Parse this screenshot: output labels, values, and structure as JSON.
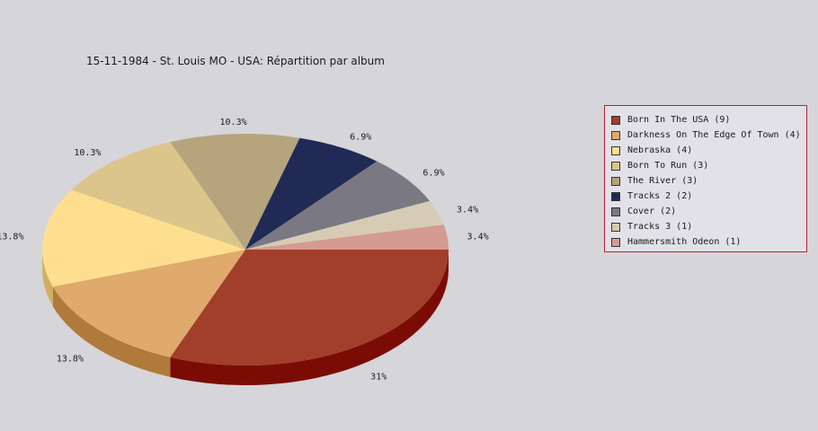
{
  "chart_data": {
    "type": "pie",
    "title": "15-11-1984 - St. Louis MO - USA:  Répartition par album",
    "legend_position": "right",
    "slices": [
      {
        "label": "Born In The USA (9)",
        "value": 9,
        "percent_label": "31%",
        "color": "#a13f2a",
        "side_color": "#7b0c05"
      },
      {
        "label": "Darkness On The Edge Of Town (4)",
        "value": 4,
        "percent_label": "13.8%",
        "color": "#dfaa6c",
        "side_color": "#b07a3b"
      },
      {
        "label": "Nebraska (4)",
        "value": 4,
        "percent_label": "13.8%",
        "color": "#fedf8f",
        "side_color": "#d0b060"
      },
      {
        "label": "Born To Run (3)",
        "value": 3,
        "percent_label": "10.3%",
        "color": "#dcc58a",
        "side_color": "#b09a60"
      },
      {
        "label": "The River (3)",
        "value": 3,
        "percent_label": "10.3%",
        "color": "#b5a47c",
        "side_color": "#8a7a55"
      },
      {
        "label": "Tracks 2 (2)",
        "value": 2,
        "percent_label": "6.9%",
        "color": "#212a55",
        "side_color": "#0f1535"
      },
      {
        "label": "Cover (2)",
        "value": 2,
        "percent_label": "6.9%",
        "color": "#7a7883",
        "side_color": "#55535c"
      },
      {
        "label": "Tracks 3 (1)",
        "value": 1,
        "percent_label": "3.4%",
        "color": "#d6cbb4",
        "side_color": "#a99e88"
      },
      {
        "label": "Hammersmith Odeon  (1)",
        "value": 1,
        "percent_label": "3.4%",
        "color": "#d59a92",
        "side_color": "#a56f68"
      }
    ]
  }
}
